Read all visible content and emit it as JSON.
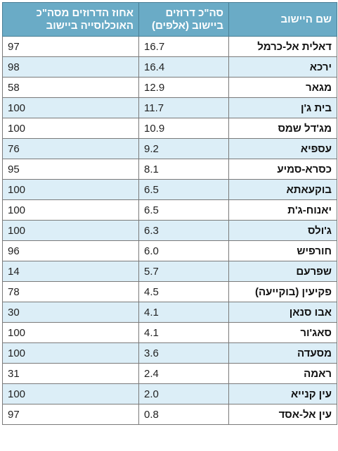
{
  "table": {
    "headers": {
      "name": "שם היישוב",
      "total": "סה\"כ דרוזים ביישוב (אלפים)",
      "pct": "אחוז הדרוזים מסה\"כ האוכלוסייה ביישוב"
    },
    "rows": [
      {
        "name": "דאלית אל-כרמל",
        "total": "16.7",
        "pct": "97"
      },
      {
        "name": "ירכא",
        "total": "16.4",
        "pct": "98"
      },
      {
        "name": "מגאר",
        "total": "12.9",
        "pct": "58"
      },
      {
        "name": "בית ג'ן",
        "total": "11.7",
        "pct": "100"
      },
      {
        "name": "מג'דל שמס",
        "total": "10.9",
        "pct": "100"
      },
      {
        "name": "עספיא",
        "total": "9.2",
        "pct": "76"
      },
      {
        "name": "כסרא-סמיע",
        "total": "8.1",
        "pct": "95"
      },
      {
        "name": "בוקעאתא",
        "total": "6.5",
        "pct": "100"
      },
      {
        "name": "יאנוח-ג'ת",
        "total": "6.5",
        "pct": "100"
      },
      {
        "name": "ג'ולס",
        "total": "6.3",
        "pct": "100"
      },
      {
        "name": "חורפיש",
        "total": "6.0",
        "pct": "96"
      },
      {
        "name": "שפרעם",
        "total": "5.7",
        "pct": "14"
      },
      {
        "name": "פקיעין (בוקייעה)",
        "total": "4.5",
        "pct": "78"
      },
      {
        "name": "אבו סנאן",
        "total": "4.1",
        "pct": "30"
      },
      {
        "name": "סאג'ור",
        "total": "4.1",
        "pct": "100"
      },
      {
        "name": "מסעדה",
        "total": "3.6",
        "pct": "100"
      },
      {
        "name": "ראמה",
        "total": "2.4",
        "pct": "31"
      },
      {
        "name": "עין קנייא",
        "total": "2.0",
        "pct": "100"
      },
      {
        "name": "עין אל-אסד",
        "total": "0.8",
        "pct": "97"
      }
    ]
  },
  "colors": {
    "header_bg": "#6aabc6",
    "header_text": "#ffffff",
    "row_alt_bg": "#dceef7",
    "row_plain_bg": "#ffffff",
    "border": "#7a7a7a"
  }
}
